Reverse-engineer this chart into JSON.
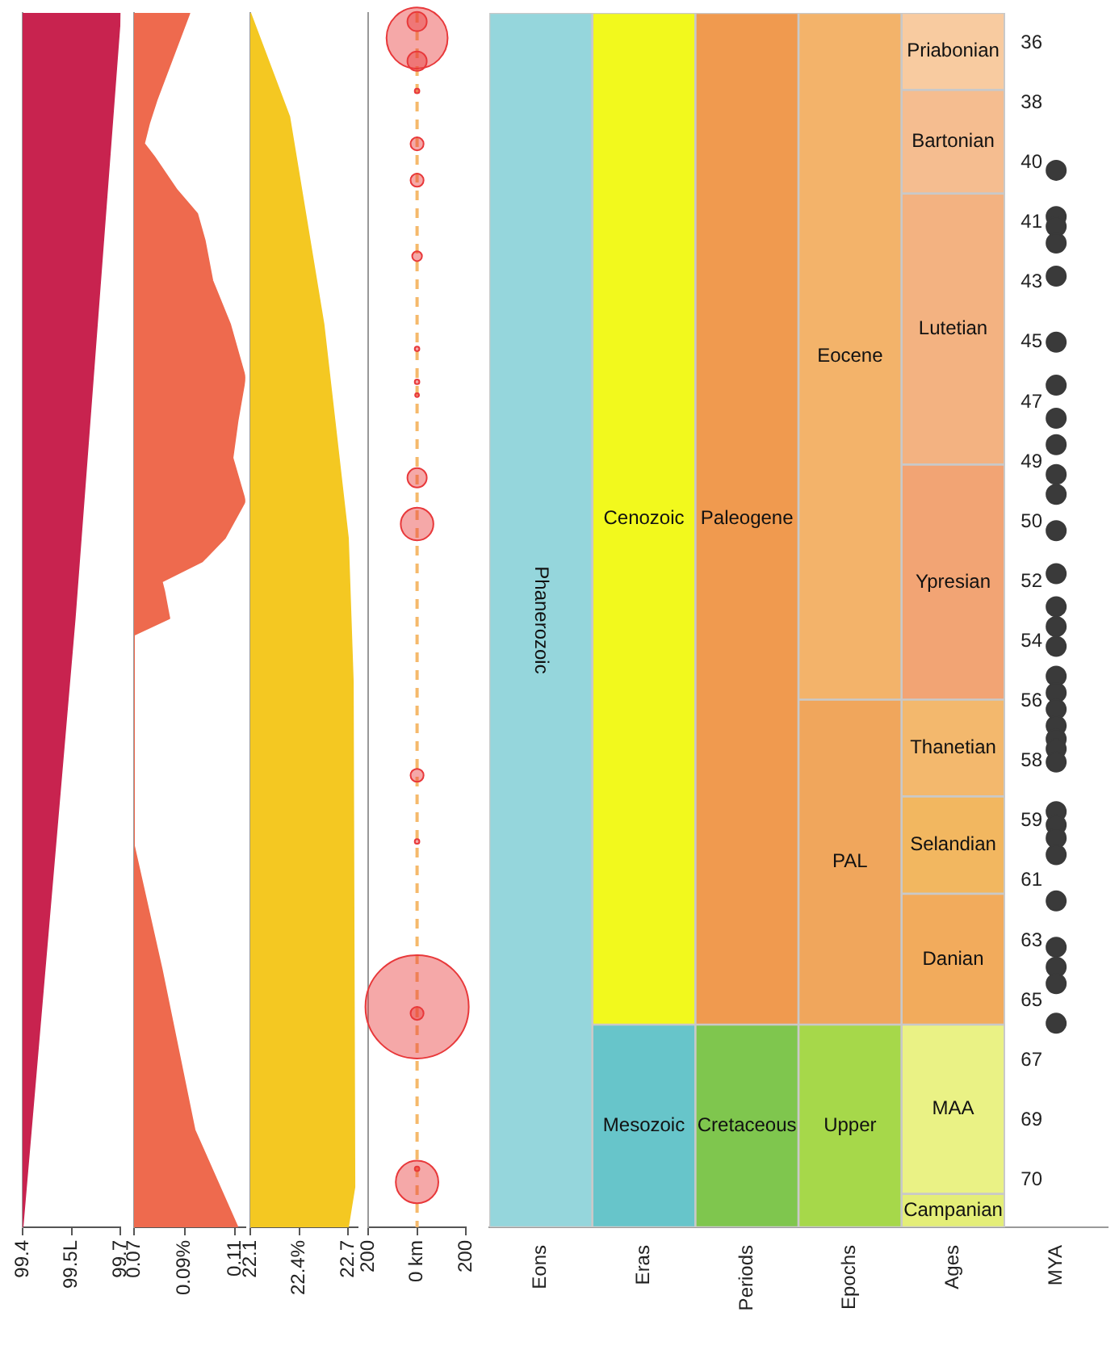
{
  "chart_data": [
    {
      "type": "area",
      "orientation": "horizontal",
      "color": "#c8234f",
      "x": [
        35.04,
        53.35,
        71.77
      ],
      "values": [
        99.7,
        99.56,
        99.4
      ],
      "xlim": [
        99.4,
        99.7
      ],
      "xticks": [
        99.4,
        {
          "value": 99.55,
          "label": "99.5L"
        },
        99.7
      ],
      "ylim": [
        71.77,
        35.04
      ],
      "tick_labels": "x"
    },
    {
      "type": "area",
      "orientation": "horizontal",
      "color": "#ee6a4e",
      "x": [
        35.04,
        36.25,
        37.67,
        38.38,
        38.99,
        39.39,
        40.4,
        41.11,
        41.92,
        43.13,
        44.45,
        46.07,
        47.38,
        48.5,
        49.81,
        50.92,
        51.63,
        52.24,
        52.54,
        53.35,
        53.85,
        60.23,
        63.97,
        68.83,
        71.77
      ],
      "values": [
        0.092,
        0.086,
        0.079,
        0.076,
        0.074,
        0.078,
        0.087,
        0.095,
        0.098,
        0.101,
        0.108,
        0.114,
        0.111,
        0.109,
        0.114,
        0.106,
        0.097,
        0.081,
        0.082,
        0.084,
        0.07,
        0.07,
        0.081,
        0.094,
        0.111
      ],
      "xlim": [
        0.07,
        0.114
      ],
      "xticks": [
        0.07,
        {
          "value": 0.09,
          "label": "0.09%"
        },
        0.11
      ],
      "ylim": [
        71.77,
        35.04
      ],
      "tick_labels": "x"
    },
    {
      "type": "area",
      "orientation": "horizontal",
      "color": "#f4c822",
      "x": [
        35.04,
        38.18,
        44.45,
        50.92,
        55.27,
        70.55,
        71.77
      ],
      "values": [
        22.1,
        22.34,
        22.55,
        22.7,
        22.73,
        22.74,
        22.7
      ],
      "xlim": [
        22.1,
        22.76
      ],
      "xticks": [
        22.1,
        {
          "value": 22.4,
          "label": "22.4%"
        },
        22.7
      ],
      "ylim": [
        71.77,
        35.04
      ],
      "tick_labels": "x"
    },
    {
      "type": "bubble",
      "color": "#e8383a",
      "x": [
        0,
        0,
        0,
        0,
        0,
        0,
        0,
        0,
        0,
        0,
        0,
        0,
        0,
        0,
        0,
        0,
        0,
        0
      ],
      "values": [
        35.3,
        35.8,
        36.5,
        37.4,
        39.0,
        40.1,
        42.4,
        45.2,
        46.2,
        46.6,
        49.1,
        50.5,
        58.1,
        60.1,
        65.1,
        65.3,
        70.0,
        70.4
      ],
      "sizes": [
        0.035,
        0.35,
        0.035,
        0.002,
        0.016,
        0.016,
        0.009,
        0.002,
        0.002,
        0.0014,
        0.035,
        0.1,
        0.016,
        0.002,
        1,
        0.016,
        0.002,
        0.17
      ],
      "xlim": [
        -200,
        200
      ],
      "xticks": [
        {
          "value": -200,
          "label": "200"
        },
        {
          "value": 0,
          "label": "0 km"
        },
        200
      ],
      "ylim": [
        71.77,
        35.04
      ],
      "tick_labels": "x",
      "ref_lines": [
        {
          "axis": "x",
          "value": 0,
          "color": "#f5b96b",
          "line_style": "dashed"
        }
      ]
    },
    {
      "type": "bar",
      "categories": [
        "Eons",
        "Eras",
        "Periods",
        "Epochs",
        "Ages",
        "MYA"
      ],
      "ylim": [
        71.77,
        35.04
      ],
      "yticks": [
        {
          "value": 35.95,
          "label": "36"
        },
        {
          "value": 37.76,
          "label": "38"
        },
        {
          "value": 39.57,
          "label": "40"
        },
        {
          "value": 41.38,
          "label": "41"
        },
        {
          "value": 43.19,
          "label": "43"
        },
        {
          "value": 45.0,
          "label": "45"
        },
        {
          "value": 46.81,
          "label": "47"
        },
        {
          "value": 48.62,
          "label": "49"
        },
        {
          "value": 50.43,
          "label": "50"
        },
        {
          "value": 52.24,
          "label": "52"
        },
        {
          "value": 54.05,
          "label": "54"
        },
        {
          "value": 55.86,
          "label": "56"
        },
        {
          "value": 57.67,
          "label": "58"
        },
        {
          "value": 59.48,
          "label": "59"
        },
        {
          "value": 61.29,
          "label": "61"
        },
        {
          "value": 63.1,
          "label": "63"
        },
        {
          "value": 64.91,
          "label": "65"
        },
        {
          "value": 66.72,
          "label": "67"
        },
        {
          "value": 68.53,
          "label": "69"
        },
        {
          "value": 70.34,
          "label": "70"
        }
      ],
      "series": [
        {
          "name": "Phanerozoic",
          "color": "#95d6dc",
          "values": [
            36.73,
            null,
            null,
            null,
            null,
            null
          ],
          "base": [
            35.04,
            null,
            null,
            null,
            null,
            null
          ]
        },
        {
          "name": "Cenozoic",
          "color": "#f2f91d",
          "values": [
            null,
            30.6,
            null,
            null,
            null,
            null
          ],
          "base": [
            null,
            35.04,
            null,
            null,
            null,
            null
          ]
        },
        {
          "name": "Mesozoic",
          "color": "#67c5ca",
          "values": [
            null,
            6.13,
            null,
            null,
            null,
            null
          ],
          "base": [
            null,
            65.64,
            null,
            null,
            null,
            null
          ]
        },
        {
          "name": "Paleogene",
          "color": "#f09a4f",
          "values": [
            null,
            null,
            30.6,
            null,
            null,
            null
          ],
          "base": [
            null,
            null,
            35.04,
            null,
            null,
            null
          ]
        },
        {
          "name": "Cretaceous",
          "color": "#7fc64e",
          "values": [
            null,
            null,
            6.13,
            null,
            null,
            null
          ],
          "base": [
            null,
            null,
            65.64,
            null,
            null,
            null
          ]
        },
        {
          "name": "Eocene",
          "color": "#f3b36a",
          "values": [
            null,
            null,
            null,
            20.77,
            null,
            null
          ],
          "base": [
            null,
            null,
            null,
            35.04,
            null,
            null
          ]
        },
        {
          "name": "PAL",
          "color": "#f0a65c",
          "values": [
            null,
            null,
            null,
            9.83,
            null,
            null
          ],
          "base": [
            null,
            null,
            null,
            55.81,
            null,
            null
          ]
        },
        {
          "name": "Upper",
          "color": "#a6d84a",
          "values": [
            null,
            null,
            null,
            6.13,
            null,
            null
          ],
          "base": [
            null,
            null,
            null,
            65.64,
            null,
            null
          ]
        },
        {
          "name": "Priabonian",
          "color": "#f8cba0",
          "values": [
            null,
            null,
            null,
            null,
            2.33,
            null
          ],
          "base": [
            null,
            null,
            null,
            null,
            35.04,
            null
          ]
        },
        {
          "name": "Bartonian",
          "color": "#f5bd90",
          "values": [
            null,
            null,
            null,
            null,
            3.13,
            null
          ],
          "base": [
            null,
            null,
            null,
            null,
            37.37,
            null
          ]
        },
        {
          "name": "Lutetian",
          "color": "#f3b281",
          "values": [
            null,
            null,
            null,
            null,
            8.2,
            null
          ],
          "base": [
            null,
            null,
            null,
            null,
            40.5,
            null
          ]
        },
        {
          "name": "Ypresian",
          "color": "#f2a474",
          "values": [
            null,
            null,
            null,
            null,
            7.11,
            null
          ],
          "base": [
            null,
            null,
            null,
            null,
            48.7,
            null
          ]
        },
        {
          "name": "Thanetian",
          "color": "#f3b86d",
          "values": [
            null,
            null,
            null,
            null,
            2.93,
            null
          ],
          "base": [
            null,
            null,
            null,
            null,
            55.81,
            null
          ]
        },
        {
          "name": "Selandian",
          "color": "#f2b760",
          "values": [
            null,
            null,
            null,
            null,
            2.94,
            null
          ],
          "base": [
            null,
            null,
            null,
            null,
            58.74,
            null
          ]
        },
        {
          "name": "Danian",
          "color": "#f2ab5c",
          "values": [
            null,
            null,
            null,
            null,
            3.96,
            null
          ],
          "base": [
            null,
            null,
            null,
            null,
            61.68,
            null
          ]
        },
        {
          "name": "MAA",
          "color": "#eaf285",
          "values": [
            null,
            null,
            null,
            null,
            5.12,
            null
          ],
          "base": [
            null,
            null,
            null,
            null,
            65.64,
            null
          ]
        },
        {
          "name": "Campanian",
          "color": "#e4ee78",
          "values": [
            null,
            null,
            null,
            null,
            1.01,
            null
          ],
          "base": [
            null,
            null,
            null,
            null,
            70.76,
            null
          ]
        },
        {
          "type": "scatter",
          "color": "#3a3a3a",
          "x": [
            "MYA",
            "MYA",
            "MYA",
            "MYA",
            "MYA",
            "MYA",
            "MYA",
            "MYA",
            "MYA",
            "MYA",
            "MYA",
            "MYA",
            "MYA",
            "MYA",
            "MYA",
            "MYA",
            "MYA",
            "MYA",
            "MYA",
            "MYA",
            "MYA",
            "MYA",
            "MYA",
            "MYA",
            "MYA",
            "MYA",
            "MYA",
            "MYA",
            "MYA",
            "MYA",
            "MYA",
            "MYA"
          ],
          "values": [
            39.8,
            41.2,
            41.5,
            42.0,
            43.0,
            45.0,
            46.3,
            47.3,
            48.1,
            49.0,
            49.6,
            50.7,
            52.0,
            53.0,
            53.6,
            54.2,
            55.1,
            55.6,
            56.1,
            56.6,
            57.0,
            57.3,
            57.7,
            59.2,
            59.6,
            60.0,
            60.5,
            61.9,
            63.3,
            63.9,
            64.4,
            65.6
          ]
        }
      ],
      "marker": "circle"
    }
  ]
}
